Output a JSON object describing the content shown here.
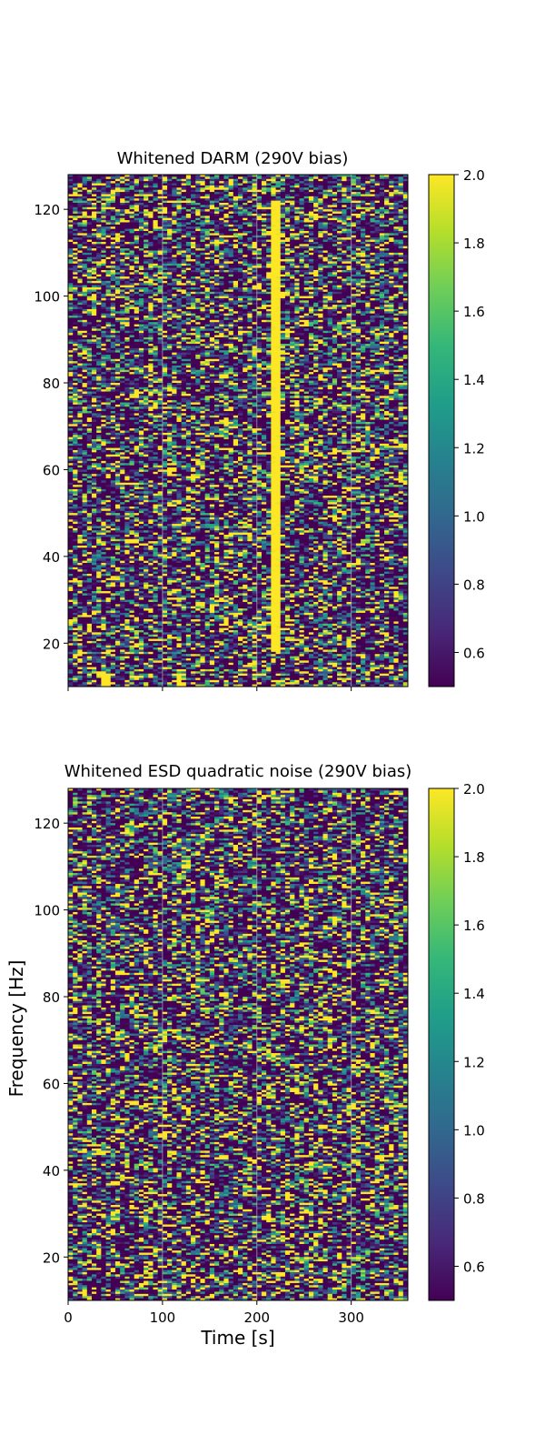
{
  "figure": {
    "ylabel": "Frequency [Hz]",
    "xlabel": "Time [s]"
  },
  "colormap": {
    "name": "viridis",
    "stops": [
      "#440154",
      "#482878",
      "#3e4989",
      "#31688e",
      "#26828e",
      "#1f9e89",
      "#35b779",
      "#6ece58",
      "#b5de2b",
      "#fde725"
    ]
  },
  "chart_data": [
    {
      "type": "heatmap",
      "title": "Whitened DARM (290V bias)",
      "x_range": [
        0,
        360
      ],
      "y_range": [
        10,
        128
      ],
      "x_ticks": [
        0,
        100,
        200,
        300
      ],
      "x_tick_labels_shown": false,
      "y_ticks": [
        20,
        40,
        60,
        80,
        100,
        120
      ],
      "color_range": [
        0.5,
        2.0
      ],
      "colorbar_ticks": [
        "2.0",
        "1.8",
        "1.6",
        "1.4",
        "1.2",
        "1.0",
        "0.8",
        "0.6"
      ],
      "colorbar_tick_values": [
        2.0,
        1.8,
        1.6,
        1.4,
        1.2,
        1.0,
        0.8,
        0.6
      ],
      "grid": true,
      "features": [
        {
          "description": "saturated vertical stripe",
          "time_range": [
            214,
            224
          ],
          "freq_range": [
            18,
            122
          ],
          "value": 2.0
        },
        {
          "description": "saturated patch",
          "time_range": [
            34,
            46
          ],
          "freq_range": [
            10,
            13
          ],
          "value": 2.0
        },
        {
          "description": "saturated patch",
          "time_range": [
            115,
            122
          ],
          "freq_range": [
            10,
            13
          ],
          "value": 2.0
        }
      ]
    },
    {
      "type": "heatmap",
      "title": "Whitened ESD quadratic noise (290V bias)",
      "x_range": [
        0,
        360
      ],
      "y_range": [
        10,
        128
      ],
      "x_ticks": [
        0,
        100,
        200,
        300
      ],
      "x_tick_labels_shown": true,
      "y_ticks": [
        20,
        40,
        60,
        80,
        100,
        120
      ],
      "color_range": [
        0.5,
        2.0
      ],
      "colorbar_ticks": [
        "2.0",
        "1.8",
        "1.6",
        "1.4",
        "1.2",
        "1.0",
        "0.8",
        "0.6"
      ],
      "colorbar_tick_values": [
        2.0,
        1.8,
        1.6,
        1.4,
        1.2,
        1.0,
        0.8,
        0.6
      ],
      "grid": true,
      "features": []
    }
  ]
}
